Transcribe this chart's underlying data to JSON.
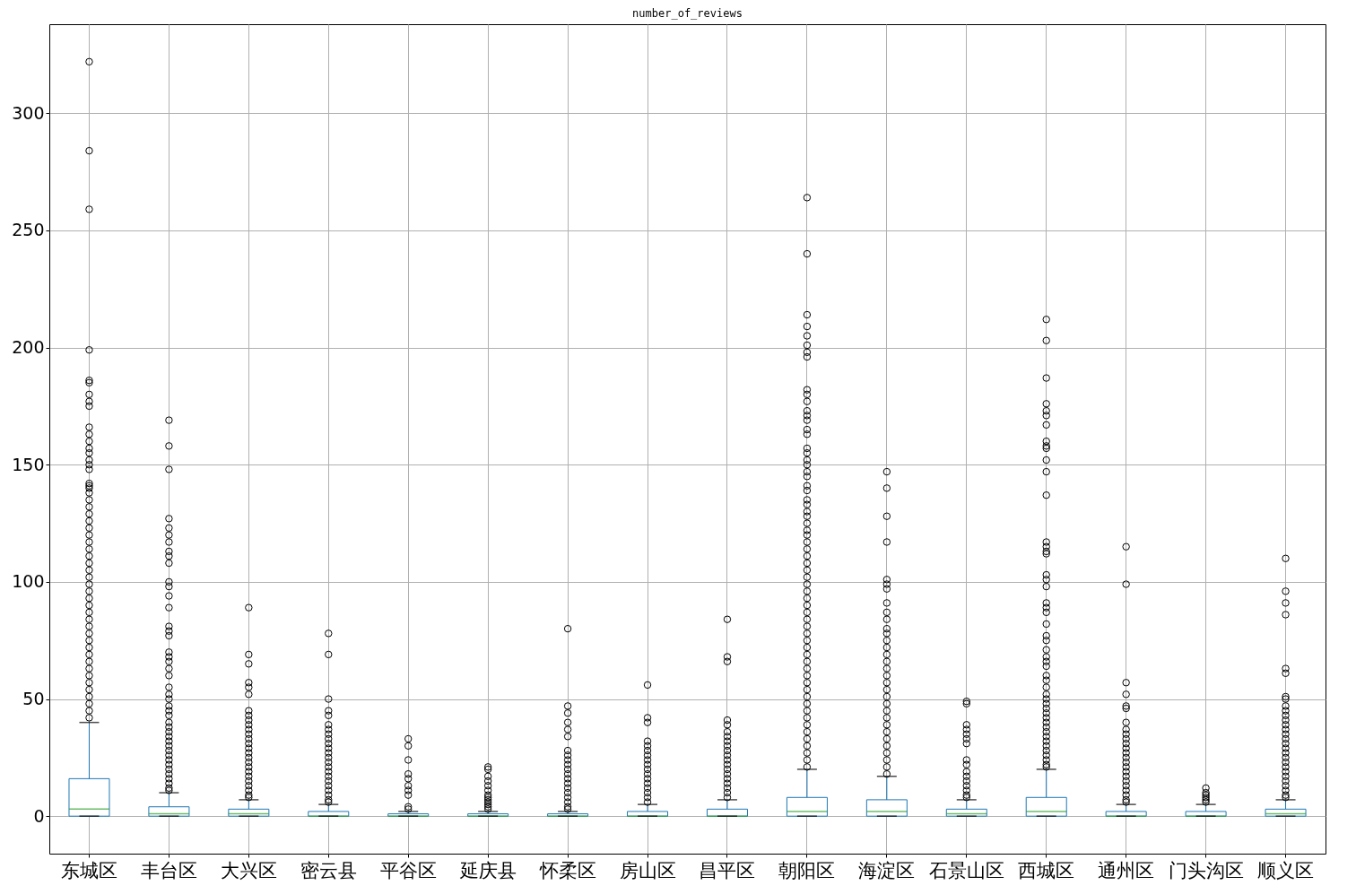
{
  "chart_data": {
    "type": "box",
    "title": "number_of_reviews",
    "categories": [
      "东城区",
      "丰台区",
      "大兴区",
      "密云县",
      "平谷区",
      "延庆县",
      "怀柔区",
      "房山区",
      "昌平区",
      "朝阳区",
      "海淀区",
      "石景山区",
      "西城区",
      "通州区",
      "门头沟区",
      "顺义区"
    ],
    "series": [
      {
        "color": "#1f77b4",
        "boxes": [
          {
            "low": 0,
            "q1": 0,
            "median": 3,
            "q3": 16,
            "high": 40,
            "outliers": [
              322,
              284,
              259,
              199,
              186,
              185,
              180,
              177,
              175,
              166,
              163,
              160,
              157,
              155,
              152,
              150,
              148,
              142,
              141,
              140,
              138,
              135,
              132,
              129,
              126,
              123,
              120,
              117,
              114,
              111,
              108,
              105,
              102,
              99,
              96,
              93,
              90,
              87,
              84,
              81,
              78,
              75,
              72,
              69,
              66,
              63,
              60,
              57,
              54,
              51,
              48,
              45,
              42
            ]
          },
          {
            "low": 0,
            "q1": 0,
            "median": 1,
            "q3": 4,
            "high": 10,
            "outliers": [
              169,
              158,
              148,
              127,
              123,
              120,
              117,
              113,
              111,
              108,
              100,
              98,
              94,
              89,
              81,
              79,
              77,
              70,
              68,
              66,
              63,
              60,
              55,
              52,
              50,
              47,
              45,
              43,
              40,
              38,
              36,
              34,
              32,
              30,
              28,
              26,
              24,
              22,
              20,
              18,
              16,
              14,
              12,
              11
            ]
          },
          {
            "low": 0,
            "q1": 0,
            "median": 1,
            "q3": 3,
            "high": 7,
            "outliers": [
              89,
              69,
              65,
              57,
              55,
              52,
              45,
              43,
              41,
              39,
              37,
              35,
              33,
              31,
              29,
              27,
              25,
              23,
              21,
              19,
              17,
              15,
              13,
              11,
              9,
              8
            ]
          },
          {
            "low": 0,
            "q1": 0,
            "median": 0,
            "q3": 2,
            "high": 5,
            "outliers": [
              78,
              69,
              50,
              45,
              43,
              39,
              37,
              35,
              33,
              31,
              29,
              27,
              25,
              23,
              21,
              19,
              17,
              15,
              13,
              11,
              9,
              7,
              6
            ]
          },
          {
            "low": 0,
            "q1": 0,
            "median": 0,
            "q3": 1,
            "high": 2,
            "outliers": [
              33,
              30,
              24,
              18,
              16,
              13,
              11,
              9,
              4,
              3
            ]
          },
          {
            "low": 0,
            "q1": 0,
            "median": 0,
            "q3": 1,
            "high": 2,
            "outliers": [
              21,
              20,
              17,
              15,
              13,
              11,
              9,
              8,
              7,
              6,
              5,
              4,
              3
            ]
          },
          {
            "low": 0,
            "q1": 0,
            "median": 0,
            "q3": 1,
            "high": 2,
            "outliers": [
              80,
              47,
              44,
              40,
              37,
              34,
              28,
              26,
              24,
              22,
              20,
              18,
              16,
              14,
              12,
              10,
              8,
              6,
              4,
              3
            ]
          },
          {
            "low": 0,
            "q1": 0,
            "median": 0,
            "q3": 2,
            "high": 5,
            "outliers": [
              56,
              42,
              40,
              32,
              30,
              28,
              26,
              24,
              22,
              20,
              18,
              16,
              14,
              12,
              10,
              8,
              6
            ]
          },
          {
            "low": 0,
            "q1": 0,
            "median": 0,
            "q3": 3,
            "high": 7,
            "outliers": [
              84,
              68,
              66,
              41,
              39,
              36,
              34,
              32,
              30,
              28,
              26,
              24,
              22,
              20,
              18,
              16,
              14,
              12,
              10,
              8
            ]
          },
          {
            "low": 0,
            "q1": 0,
            "median": 2,
            "q3": 8,
            "high": 20,
            "outliers": [
              264,
              240,
              214,
              209,
              205,
              201,
              198,
              196,
              182,
              180,
              177,
              173,
              171,
              169,
              165,
              163,
              157,
              155,
              152,
              150,
              147,
              145,
              141,
              139,
              135,
              133,
              130,
              128,
              125,
              122,
              120,
              117,
              114,
              111,
              108,
              105,
              102,
              99,
              96,
              93,
              90,
              87,
              84,
              81,
              78,
              75,
              72,
              69,
              66,
              63,
              60,
              57,
              54,
              51,
              48,
              45,
              42,
              39,
              36,
              33,
              30,
              27,
              24,
              21
            ]
          },
          {
            "low": 0,
            "q1": 0,
            "median": 2,
            "q3": 7,
            "high": 17,
            "outliers": [
              147,
              140,
              128,
              117,
              101,
              99,
              97,
              91,
              87,
              84,
              80,
              78,
              75,
              72,
              69,
              66,
              63,
              60,
              57,
              54,
              51,
              48,
              45,
              42,
              39,
              36,
              33,
              30,
              27,
              24,
              21,
              18
            ]
          },
          {
            "low": 0,
            "q1": 0,
            "median": 1,
            "q3": 3,
            "high": 7,
            "outliers": [
              49,
              48,
              39,
              37,
              35,
              33,
              31,
              24,
              22,
              19,
              17,
              15,
              13,
              11,
              9,
              8
            ]
          },
          {
            "low": 0,
            "q1": 0,
            "median": 2,
            "q3": 8,
            "high": 20,
            "outliers": [
              212,
              203,
              187,
              176,
              173,
              171,
              167,
              160,
              158,
              157,
              152,
              147,
              137,
              117,
              115,
              113,
              112,
              103,
              101,
              98,
              91,
              89,
              87,
              82,
              77,
              75,
              71,
              68,
              66,
              64,
              60,
              58,
              55,
              52,
              50,
              48,
              46,
              44,
              42,
              40,
              38,
              36,
              34,
              32,
              30,
              28,
              26,
              24,
              22,
              21
            ]
          },
          {
            "low": 0,
            "q1": 0,
            "median": 0,
            "q3": 2,
            "high": 5,
            "outliers": [
              115,
              99,
              57,
              52,
              47,
              46,
              40,
              37,
              35,
              33,
              31,
              29,
              27,
              25,
              23,
              21,
              19,
              17,
              15,
              13,
              11,
              9,
              7,
              6
            ]
          },
          {
            "low": 0,
            "q1": 0,
            "median": 0,
            "q3": 2,
            "high": 5,
            "outliers": [
              12,
              10,
              9,
              8,
              7,
              6
            ]
          },
          {
            "low": 0,
            "q1": 0,
            "median": 1,
            "q3": 3,
            "high": 7,
            "outliers": [
              110,
              96,
              91,
              86,
              63,
              61,
              51,
              50,
              47,
              45,
              43,
              41,
              39,
              37,
              35,
              33,
              31,
              29,
              27,
              25,
              23,
              21,
              19,
              17,
              15,
              13,
              11,
              9,
              8
            ]
          }
        ]
      }
    ],
    "ylim": [
      -16,
      338
    ],
    "yticks": [
      0,
      50,
      100,
      150,
      200,
      250,
      300
    ],
    "grid": true,
    "marker": "circle"
  }
}
